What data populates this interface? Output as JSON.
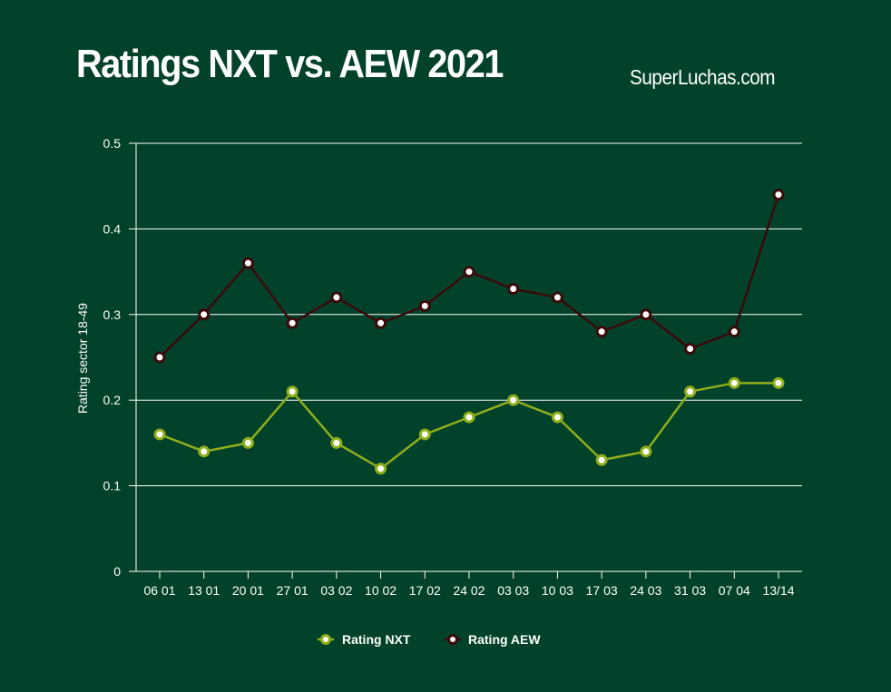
{
  "header": {
    "title": "Ratings NXT vs. AEW 2021",
    "source": "SuperLuchas.com"
  },
  "chart_data": {
    "type": "line",
    "title": "Ratings NXT vs. AEW 2021",
    "xlabel": "",
    "ylabel": "Rating sector 18-49",
    "ylim": [
      0,
      0.5
    ],
    "yticks": [
      "0",
      "0.1",
      "0.2",
      "0.3",
      "0.4",
      "0.5"
    ],
    "grid": true,
    "legend_position": "bottom",
    "categories": [
      "06 01",
      "13 01",
      "20 01",
      "27 01",
      "03 02",
      "10 02",
      "17 02",
      "24 02",
      "03 03",
      "10 03",
      "17 03",
      "24 03",
      "31 03",
      "07 04",
      "13/14"
    ],
    "series": [
      {
        "name": "Rating NXT",
        "color": "#8fae1b",
        "values": [
          0.16,
          0.14,
          0.15,
          0.21,
          0.15,
          0.12,
          0.16,
          0.18,
          0.2,
          0.18,
          0.13,
          0.14,
          0.21,
          0.22,
          0.22
        ]
      },
      {
        "name": "Rating AEW",
        "color": "#3a0a0a",
        "values": [
          0.25,
          0.3,
          0.36,
          0.29,
          0.32,
          0.29,
          0.31,
          0.35,
          0.33,
          0.32,
          0.28,
          0.3,
          0.26,
          0.28,
          0.44
        ]
      }
    ],
    "colors": {
      "background": "#02422a",
      "gridline": "#ffffff"
    }
  }
}
